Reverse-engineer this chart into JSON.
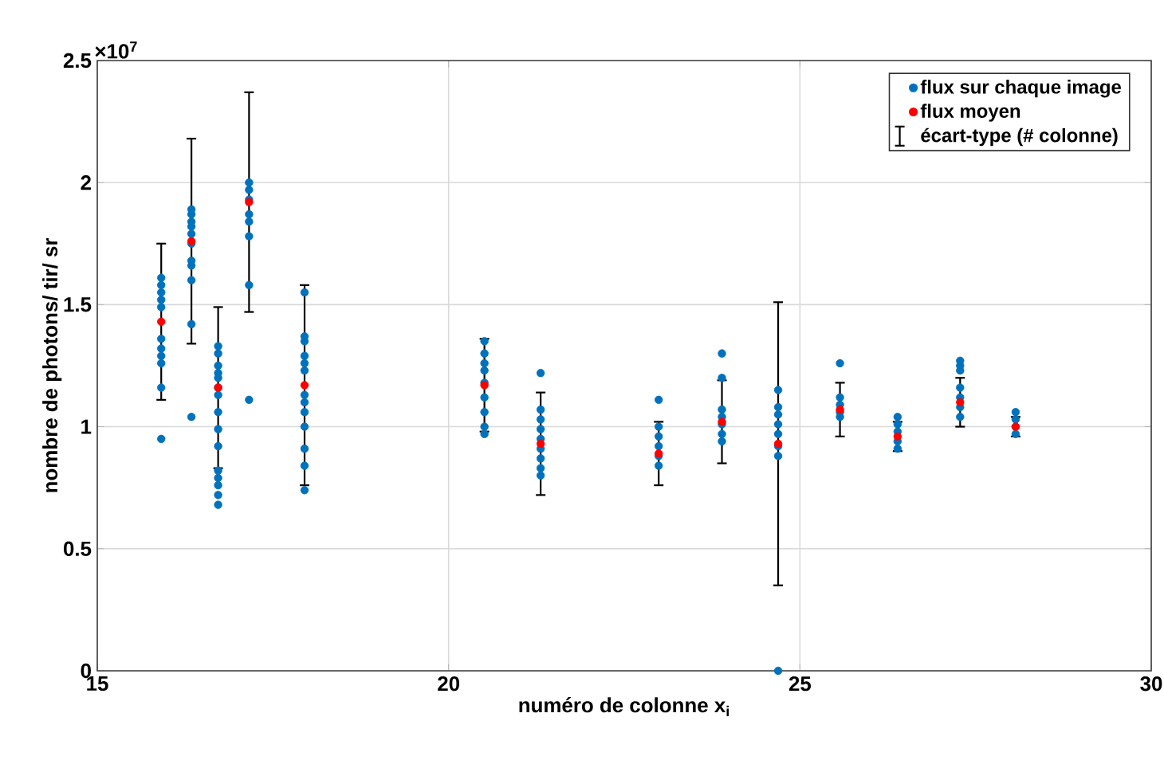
{
  "chart_data": {
    "type": "scatter",
    "xlabel": "numéro de colonne x$_{i}$",
    "ylabel": "nombre de photons/ tir/ sr",
    "annotations": [
      "×10$^{7}$",
      "écart-type (# colonne)"
    ],
    "xlim": [
      15,
      30
    ],
    "xticks": [
      15,
      20,
      25,
      30
    ],
    "ylim": [
      0,
      2.5
    ],
    "yticks": [
      0,
      0.5,
      1,
      1.5,
      2,
      2.5
    ],
    "grid": true,
    "legend": "top right",
    "marker": "circle",
    "series": [
      {
        "name": "flux sur chaque image",
        "color": "#0072bd",
        "x": [
          15.91,
          15.91,
          15.91,
          15.91,
          15.91,
          15.91,
          15.91,
          15.91,
          15.91,
          15.91,
          15.91,
          16.34,
          16.34,
          16.34,
          16.34,
          16.34,
          16.34,
          16.34,
          16.34,
          16.34,
          16.34,
          16.34,
          16.72,
          16.72,
          16.72,
          16.72,
          16.72,
          16.72,
          16.72,
          16.72,
          16.72,
          16.72,
          16.72,
          16.72,
          16.72,
          16.72,
          16.72,
          17.16,
          17.16,
          17.16,
          17.16,
          17.16,
          17.16,
          17.16,
          17.16,
          17.95,
          17.95,
          17.95,
          17.95,
          17.95,
          17.95,
          17.95,
          17.95,
          17.95,
          17.95,
          17.95,
          17.95,
          17.95,
          20.51,
          20.51,
          20.51,
          20.51,
          20.51,
          20.51,
          20.51,
          20.51,
          20.51,
          21.31,
          21.31,
          21.31,
          21.31,
          21.31,
          21.31,
          21.31,
          21.31,
          21.31,
          22.99,
          22.99,
          22.99,
          22.99,
          22.99,
          22.99,
          23.89,
          23.89,
          23.89,
          23.89,
          23.89,
          23.89,
          23.89,
          24.69,
          24.69,
          24.69,
          24.69,
          24.69,
          24.69,
          24.69,
          24.69,
          25.57,
          25.57,
          25.57,
          25.57,
          25.57,
          26.39,
          26.39,
          26.39,
          26.39,
          26.39,
          27.28,
          27.28,
          27.28,
          27.28,
          27.28,
          27.28,
          27.28,
          28.07,
          28.07,
          28.07,
          28.07
        ],
        "values": [
          1.61,
          1.58,
          1.55,
          1.52,
          1.49,
          1.36,
          1.32,
          1.29,
          1.26,
          1.16,
          0.95,
          1.89,
          1.87,
          1.84,
          1.82,
          1.79,
          1.75,
          1.68,
          1.66,
          1.6,
          1.42,
          1.04,
          1.33,
          1.3,
          1.25,
          1.22,
          1.2,
          1.16,
          1.13,
          1.06,
          0.99,
          0.92,
          0.82,
          0.79,
          0.76,
          0.72,
          0.68,
          2.0,
          1.97,
          1.93,
          1.87,
          1.84,
          1.78,
          1.58,
          1.11,
          1.55,
          1.37,
          1.35,
          1.29,
          1.26,
          1.23,
          1.13,
          1.1,
          1.06,
          1.0,
          0.91,
          0.84,
          0.74,
          1.35,
          1.3,
          1.26,
          1.23,
          1.18,
          1.12,
          1.06,
          1.0,
          0.97,
          1.22,
          1.07,
          1.03,
          0.99,
          0.95,
          0.91,
          0.87,
          0.83,
          0.8,
          1.11,
          1.0,
          0.96,
          0.92,
          0.88,
          0.84,
          1.3,
          1.2,
          1.07,
          1.04,
          1.01,
          0.97,
          0.94,
          1.15,
          1.08,
          1.05,
          1.01,
          0.97,
          0.92,
          0.88,
          0.0,
          1.26,
          1.12,
          1.09,
          1.06,
          1.04,
          1.04,
          1.01,
          0.98,
          0.94,
          0.91,
          1.27,
          1.25,
          1.23,
          1.16,
          1.12,
          1.08,
          1.04,
          1.06,
          1.03,
          1.0,
          0.97
        ]
      },
      {
        "name": "flux moyen",
        "color": "#ff0000",
        "x": [
          15.91,
          16.34,
          16.72,
          17.16,
          17.95,
          20.51,
          21.31,
          22.99,
          23.89,
          24.69,
          25.57,
          26.39,
          27.28,
          28.07
        ],
        "values": [
          1.43,
          1.76,
          1.16,
          1.92,
          1.17,
          1.17,
          0.93,
          0.89,
          1.02,
          0.93,
          1.07,
          0.96,
          1.1,
          1.0
        ],
        "errors": [
          0.32,
          0.42,
          0.33,
          0.45,
          0.41,
          0.19,
          0.21,
          0.13,
          0.17,
          0.58,
          0.11,
          0.06,
          0.1,
          0.04
        ]
      }
    ]
  }
}
